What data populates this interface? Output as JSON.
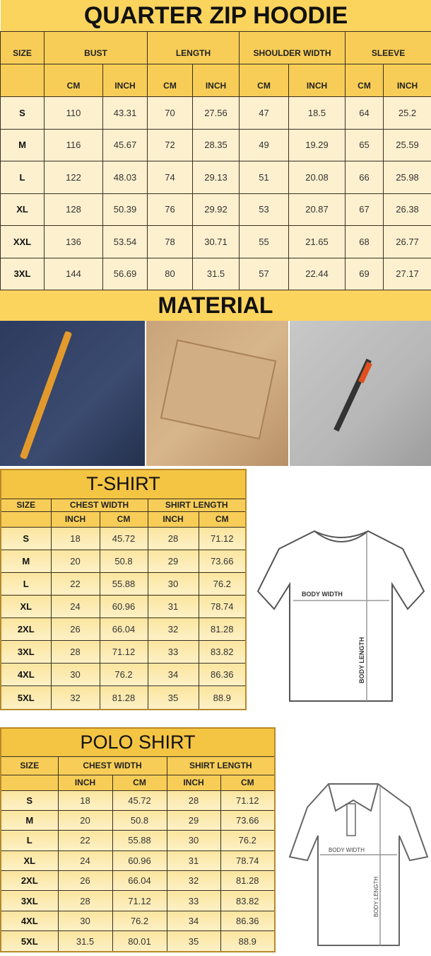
{
  "hoodie": {
    "title": "QUARTER ZIP HOODIE",
    "headers": [
      "SIZE",
      "BUST",
      "LENGTH",
      "SHOULDER WIDTH",
      "SLEEVE"
    ],
    "subheaders": [
      "CM",
      "INCH",
      "CM",
      "INCH",
      "CM",
      "INCH",
      "CM",
      "INCH"
    ],
    "rows": [
      [
        "S",
        "110",
        "43.31",
        "70",
        "27.56",
        "47",
        "18.5",
        "64",
        "25.2"
      ],
      [
        "M",
        "116",
        "45.67",
        "72",
        "28.35",
        "49",
        "19.29",
        "65",
        "25.59"
      ],
      [
        "L",
        "122",
        "48.03",
        "74",
        "29.13",
        "51",
        "20.08",
        "66",
        "25.98"
      ],
      [
        "XL",
        "128",
        "50.39",
        "76",
        "29.92",
        "53",
        "20.87",
        "67",
        "26.38"
      ],
      [
        "XXL",
        "136",
        "53.54",
        "78",
        "30.71",
        "55",
        "21.65",
        "68",
        "26.77"
      ],
      [
        "3XL",
        "144",
        "56.69",
        "80",
        "31.5",
        "57",
        "22.44",
        "69",
        "27.17"
      ]
    ]
  },
  "material": {
    "title": "MATERIAL",
    "photos": [
      "navy-pocket-with-orange-zip-pull",
      "beige-flap-pocket",
      "grey-sleeve-with-zip-pocket"
    ]
  },
  "tshirt": {
    "title": "T-SHIRT",
    "headers": [
      "SIZE",
      "CHEST WIDTH",
      "SHIRT LENGTH"
    ],
    "subheaders": [
      "INCH",
      "CM",
      "INCH",
      "CM"
    ],
    "rows": [
      [
        "S",
        "18",
        "45.72",
        "28",
        "71.12"
      ],
      [
        "M",
        "20",
        "50.8",
        "29",
        "73.66"
      ],
      [
        "L",
        "22",
        "55.88",
        "30",
        "76.2"
      ],
      [
        "XL",
        "24",
        "60.96",
        "31",
        "78.74"
      ],
      [
        "2XL",
        "26",
        "66.04",
        "32",
        "81.28"
      ],
      [
        "3XL",
        "28",
        "71.12",
        "33",
        "83.82"
      ],
      [
        "4XL",
        "30",
        "76.2",
        "34",
        "86.36"
      ],
      [
        "5XL",
        "32",
        "81.28",
        "35",
        "88.9"
      ]
    ],
    "diagram": {
      "width_label": "BODY WIDTH",
      "length_label": "BODY LENGTH"
    }
  },
  "polo": {
    "title": "POLO SHIRT",
    "headers": [
      "SIZE",
      "CHEST WIDTH",
      "SHIRT LENGTH"
    ],
    "subheaders": [
      "INCH",
      "CM",
      "INCH",
      "CM"
    ],
    "rows": [
      [
        "S",
        "18",
        "45.72",
        "28",
        "71.12"
      ],
      [
        "M",
        "20",
        "50.8",
        "29",
        "73.66"
      ],
      [
        "L",
        "22",
        "55.88",
        "30",
        "76.2"
      ],
      [
        "XL",
        "24",
        "60.96",
        "31",
        "78.74"
      ],
      [
        "2XL",
        "26",
        "66.04",
        "32",
        "81.28"
      ],
      [
        "3XL",
        "28",
        "71.12",
        "33",
        "83.82"
      ],
      [
        "4XL",
        "30",
        "76.2",
        "34",
        "86.36"
      ],
      [
        "5XL",
        "31.5",
        "80.01",
        "35",
        "88.9"
      ]
    ],
    "diagram": {
      "width_label": "BODY WIDTH",
      "length_label": "BODY LENGTH"
    }
  }
}
